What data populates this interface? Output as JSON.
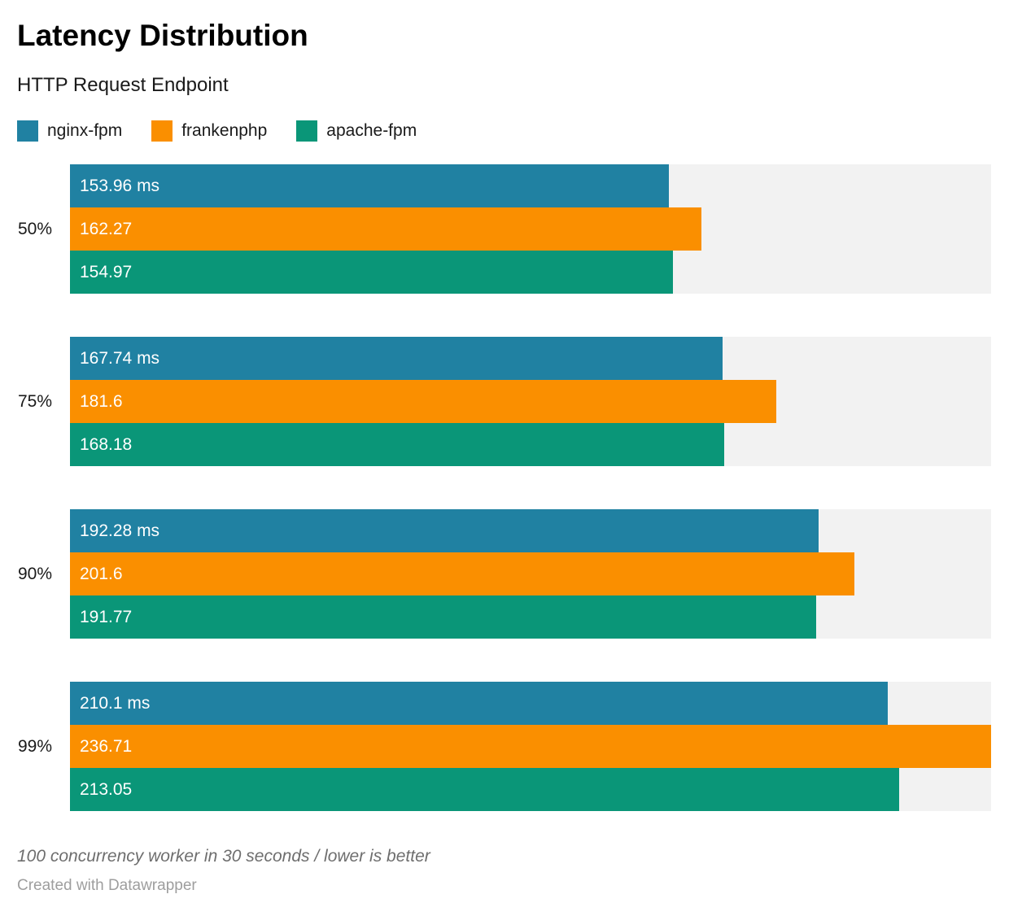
{
  "header": {
    "title": "Latency Distribution",
    "subtitle": "HTTP Request Endpoint"
  },
  "colors": {
    "nginx_fpm": "#2081a2",
    "frankenphp": "#fa8f00",
    "apache_fpm": "#0a9678",
    "track": "#f2f2f2"
  },
  "chart_data": {
    "type": "bar",
    "orientation": "horizontal",
    "title": "Latency Distribution",
    "subtitle": "HTTP Request Endpoint",
    "legend_position": "top",
    "grid": false,
    "unit": "ms",
    "xlim": [
      0,
      236.71
    ],
    "categories": [
      "50%",
      "75%",
      "90%",
      "99%"
    ],
    "series": [
      {
        "name": "nginx-fpm",
        "color": "#2081a2",
        "values": [
          153.96,
          167.74,
          192.28,
          210.1
        ],
        "labels": [
          "153.96 ms",
          "167.74 ms",
          "192.28 ms",
          "210.1 ms"
        ]
      },
      {
        "name": "frankenphp",
        "color": "#fa8f00",
        "values": [
          162.27,
          181.6,
          201.6,
          236.71
        ],
        "labels": [
          "162.27",
          "181.6",
          "201.6",
          "236.71"
        ]
      },
      {
        "name": "apache-fpm",
        "color": "#0a9678",
        "values": [
          154.97,
          168.18,
          191.77,
          213.05
        ],
        "labels": [
          "154.97",
          "168.18",
          "191.77",
          "213.05"
        ]
      }
    ]
  },
  "footer": {
    "note": "100 concurrency worker in 30 seconds / lower is better",
    "attribution": "Created with Datawrapper"
  }
}
